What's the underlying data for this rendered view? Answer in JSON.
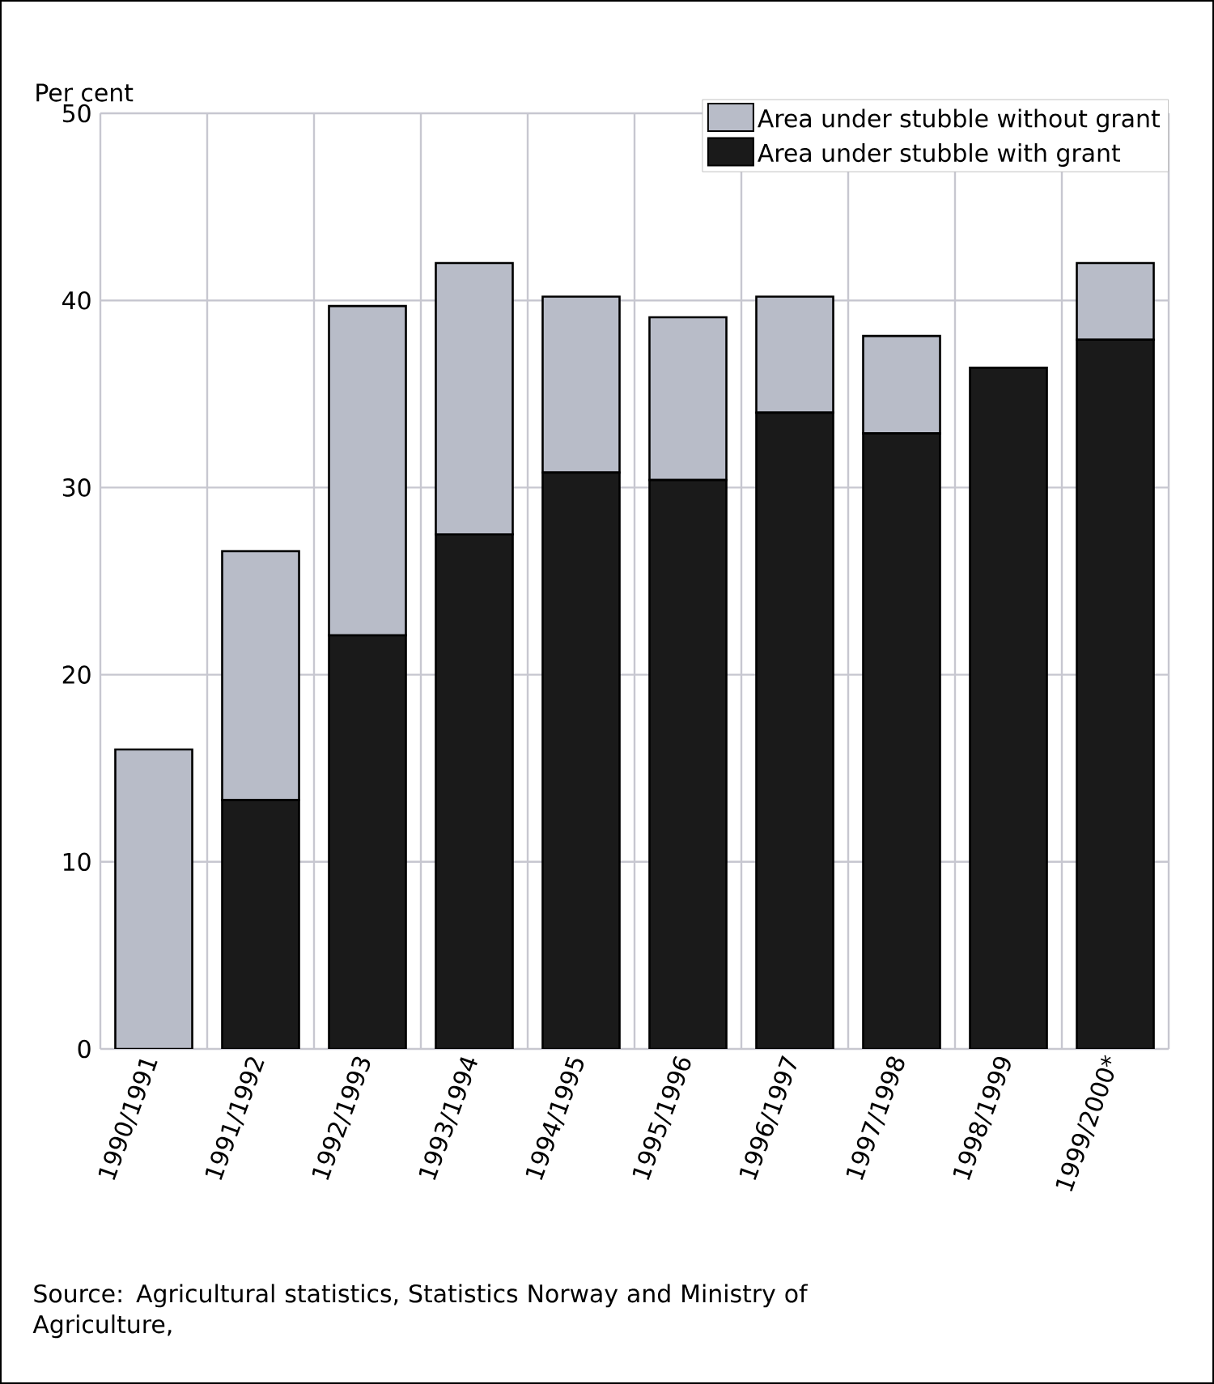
{
  "chart_data": {
    "type": "bar",
    "stacked": true,
    "ylabel": "Per cent",
    "categories": [
      "1990/1991",
      "1991/1992",
      "1992/1993",
      "1993/1994",
      "1994/1995",
      "1995/1996",
      "1996/1997",
      "1997/1998",
      "1998/1999",
      "1999/2000*"
    ],
    "series": [
      {
        "name": "Area under stubble with grant",
        "color": "#1a1a1a",
        "values": [
          0,
          13.3,
          22.1,
          27.5,
          30.8,
          30.4,
          34.0,
          32.9,
          36.4,
          37.9
        ]
      },
      {
        "name": "Area under stubble without grant",
        "color": "#b8bcc8",
        "values": [
          16.0,
          13.3,
          17.6,
          14.5,
          9.4,
          8.7,
          6.2,
          5.2,
          0,
          4.1
        ]
      }
    ],
    "ylim": [
      0,
      50
    ],
    "yticks": [
      0,
      10,
      20,
      30,
      40,
      50
    ],
    "grid": true,
    "legend": "top right",
    "annotations": [
      "Source: Agricultural statistics, Statistics Norway and Ministry of Agriculture,"
    ]
  }
}
